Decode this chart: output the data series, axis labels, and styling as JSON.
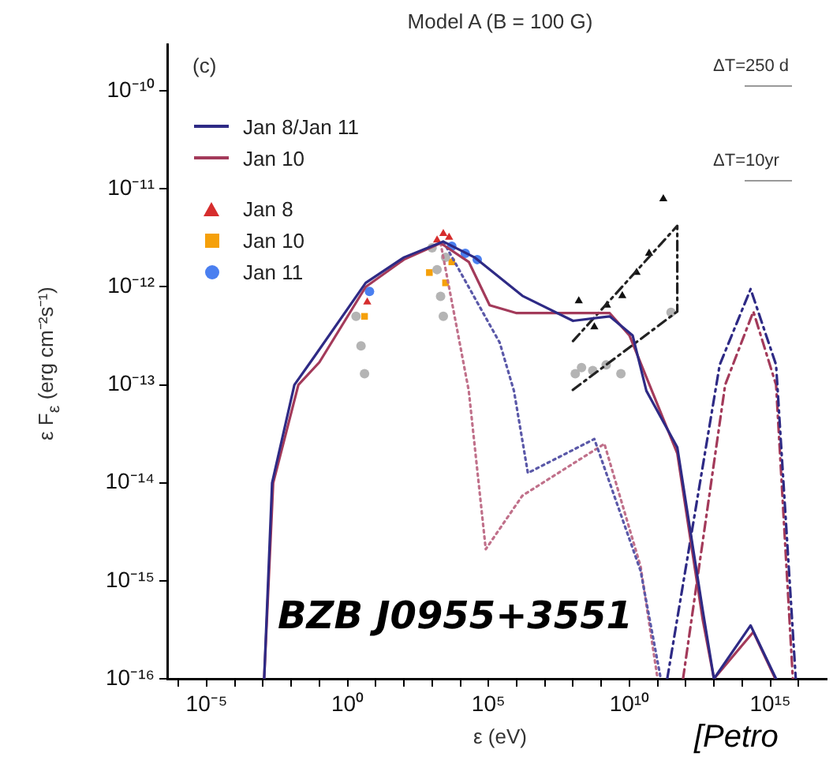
{
  "chart_data": {
    "type": "line",
    "title": "Model A (B = 100 G)",
    "xlabel": "ε (eV)",
    "ylabel": "ε F$_{ε}$ (erg cm⁻²s⁻¹)",
    "log": "xy",
    "grid": false,
    "legend": "top left",
    "xlim": [
      4e-07,
      1e+17
    ],
    "ylim": [
      1e-16,
      3e-10
    ],
    "xticks": [
      {
        "value": 1e-06,
        "label": null
      },
      {
        "value": 1e-05,
        "label": "10⁻⁵"
      },
      {
        "value": 0.0001,
        "label": null
      },
      {
        "value": 0.001,
        "label": null
      },
      {
        "value": 0.01,
        "label": null
      },
      {
        "value": 0.1,
        "label": null
      },
      {
        "value": 1,
        "label": "10⁰"
      },
      {
        "value": 10,
        "label": null
      },
      {
        "value": 100,
        "label": null
      },
      {
        "value": 1000.0,
        "label": null
      },
      {
        "value": 10000.0,
        "label": null
      },
      {
        "value": 100000.0,
        "label": "10⁵"
      },
      {
        "value": 1000000.0,
        "label": null
      },
      {
        "value": 10000000.0,
        "label": null
      },
      {
        "value": 100000000.0,
        "label": null
      },
      {
        "value": 1000000000.0,
        "label": null
      },
      {
        "value": 10000000000.0,
        "label": "10¹⁰"
      },
      {
        "value": 100000000000.0,
        "label": null
      },
      {
        "value": 1000000000000.0,
        "label": null
      },
      {
        "value": 10000000000000.0,
        "label": null
      },
      {
        "value": 100000000000000.0,
        "label": null
      },
      {
        "value": 1000000000000000.0,
        "label": "10¹⁵"
      },
      {
        "value": 1e+16,
        "label": null
      }
    ],
    "yticks": [
      {
        "value": 1e-16,
        "label": "10⁻¹⁶"
      },
      {
        "value": 1e-15,
        "label": "10⁻¹⁵"
      },
      {
        "value": 1e-14,
        "label": "10⁻¹⁴"
      },
      {
        "value": 1e-13,
        "label": "10⁻¹³"
      },
      {
        "value": 1e-12,
        "label": "10⁻¹²"
      },
      {
        "value": 1e-11,
        "label": "10⁻¹¹"
      },
      {
        "value": 1e-10,
        "label": "10⁻¹⁰"
      }
    ],
    "annotations": [
      "(c)",
      "ΔT=250 d",
      "ΔT=10yr",
      "BZB J0955+3551",
      "[Petro"
    ],
    "series": [
      {
        "name": "Jan 8/Jan 11",
        "color": "#2e2a85",
        "line_style": "solid",
        "x": [
          0.0011,
          0.0021,
          0.013,
          0.063,
          4.4,
          100,
          2500.0,
          32000.0,
          1600000.0,
          100000000.0,
          2000000000.0,
          13000000000.0,
          40000000000.0,
          500000000000.0,
          4000000000000.0,
          10000000000000.0,
          200000000000000.0,
          1600000000000000.0
        ],
        "values": [
          1e-16,
          1e-14,
          1e-13,
          1.9e-13,
          1.1e-12,
          2e-12,
          2.9e-12,
          2e-12,
          8.1e-13,
          4.5e-13,
          5e-13,
          3.2e-13,
          8.7e-14,
          2.3e-14,
          5e-16,
          1e-16,
          3.5e-16,
          1e-16
        ]
      },
      {
        "name": "Jan 10",
        "color": "#a33a5a",
        "line_style": "solid",
        "x": [
          0.0011,
          0.0023,
          0.018,
          0.1,
          4.4,
          100,
          2000.0,
          20000.0,
          110000.0,
          1000000.0,
          2000000000.0,
          10000000000.0,
          500000000000.0,
          4000000000000.0,
          10000000000000.0,
          250000000000000.0,
          1500000000000000.0
        ],
        "values": [
          1e-16,
          1e-14,
          1e-13,
          1.7e-13,
          1e-12,
          1.9e-12,
          2.8e-12,
          1.8e-12,
          6.5e-13,
          5.4e-13,
          5.4e-13,
          3.2e-13,
          2e-14,
          4e-16,
          1e-16,
          3e-16,
          1e-16
        ]
      },
      {
        "color": "#5a58a8",
        "line_style": "dotted",
        "x": [
          2500.0,
          250000.0,
          800000.0,
          2500000.0,
          570000000.0,
          25000000000.0,
          130000000000.0
        ],
        "values": [
          2.9e-12,
          2.7e-13,
          8.7e-14,
          1.26e-14,
          2.8e-14,
          1.26e-15,
          1e-16
        ]
      },
      {
        "color": "#c0708a",
        "line_style": "dotted",
        "x": [
          2000.0,
          6300.0,
          20000.0,
          80000.0,
          1600000.0,
          1300000000.0,
          25000000000.0,
          100000000000.0
        ],
        "values": [
          2.8e-12,
          5e-13,
          8.7e-14,
          2.1e-15,
          7.4e-15,
          2.5e-14,
          1.4e-15,
          1e-16
        ]
      },
      {
        "color": "#2e2a85",
        "line_style": "dashed",
        "x": [
          220000000000.0,
          16000000000000.0,
          200000000000000.0,
          1600000000000000.0,
          8000000000000000.0
        ],
        "values": [
          1e-16,
          1.6e-13,
          9.5e-13,
          1.6e-13,
          1e-16
        ]
      },
      {
        "color": "#a33a5a",
        "line_style": "dashed",
        "x": [
          800000000000.0,
          25000000000000.0,
          250000000000000.0,
          1600000000000000.0,
          6300000000000000.0
        ],
        "values": [
          1e-16,
          1e-13,
          5.6e-13,
          1e-13,
          1e-16
        ]
      },
      {
        "color": "#222222",
        "line_style": "dashed",
        "x": [
          100000000.0,
          500000000000.0,
          500000000000.0,
          80000000.0
        ],
        "values": [
          2.8e-13,
          4.2e-12,
          5.6e-13,
          8.5e-14
        ]
      },
      {
        "type": "scatter",
        "color": "#111111",
        "marker": "triangle",
        "x": [
          160000000.0,
          570000000.0,
          1600000000.0,
          5600000000.0,
          18000000000.0,
          50000000000.0,
          160000000000.0
        ],
        "values": [
          7.2e-13,
          3.9e-13,
          6.5e-13,
          8.1e-13,
          1.4e-12,
          2.2e-12,
          7.9e-12
        ]
      },
      {
        "type": "scatter",
        "color": "#b4b4b4",
        "marker": "circle",
        "x": [
          2,
          3,
          4,
          1000.0,
          1500.0,
          2000.0,
          2500.0,
          3000.0,
          120000000.0,
          200000000.0,
          500000000.0,
          1500000000.0,
          5000000000.0,
          300000000000.0
        ],
        "values": [
          5e-13,
          2.5e-13,
          1.3e-13,
          2.5e-12,
          1.5e-12,
          8e-13,
          5e-13,
          2e-12,
          1.3e-13,
          1.5e-13,
          1.4e-13,
          1.6e-13,
          1.3e-13,
          5.5e-13
        ]
      },
      {
        "name": "Jan 8",
        "type": "scatter",
        "color": "#d62d2d",
        "marker": "triangle",
        "x": [
          5,
          1500.0,
          2500.0,
          4000.0
        ],
        "values": [
          7e-13,
          3e-12,
          3.5e-12,
          3.2e-12
        ]
      },
      {
        "name": "Jan 10",
        "type": "scatter",
        "color": "#f5a00a",
        "marker": "square",
        "x": [
          4,
          800.0,
          3000.0,
          5000.0
        ],
        "values": [
          5e-13,
          1.4e-12,
          1.1e-12,
          1.8e-12
        ]
      },
      {
        "name": "Jan 11",
        "type": "scatter",
        "color": "#4a7ff0",
        "marker": "circle",
        "x": [
          6,
          5000.0,
          15000.0,
          40000.0
        ],
        "values": [
          9e-13,
          2.6e-12,
          2.2e-12,
          1.9e-12
        ]
      }
    ]
  }
}
